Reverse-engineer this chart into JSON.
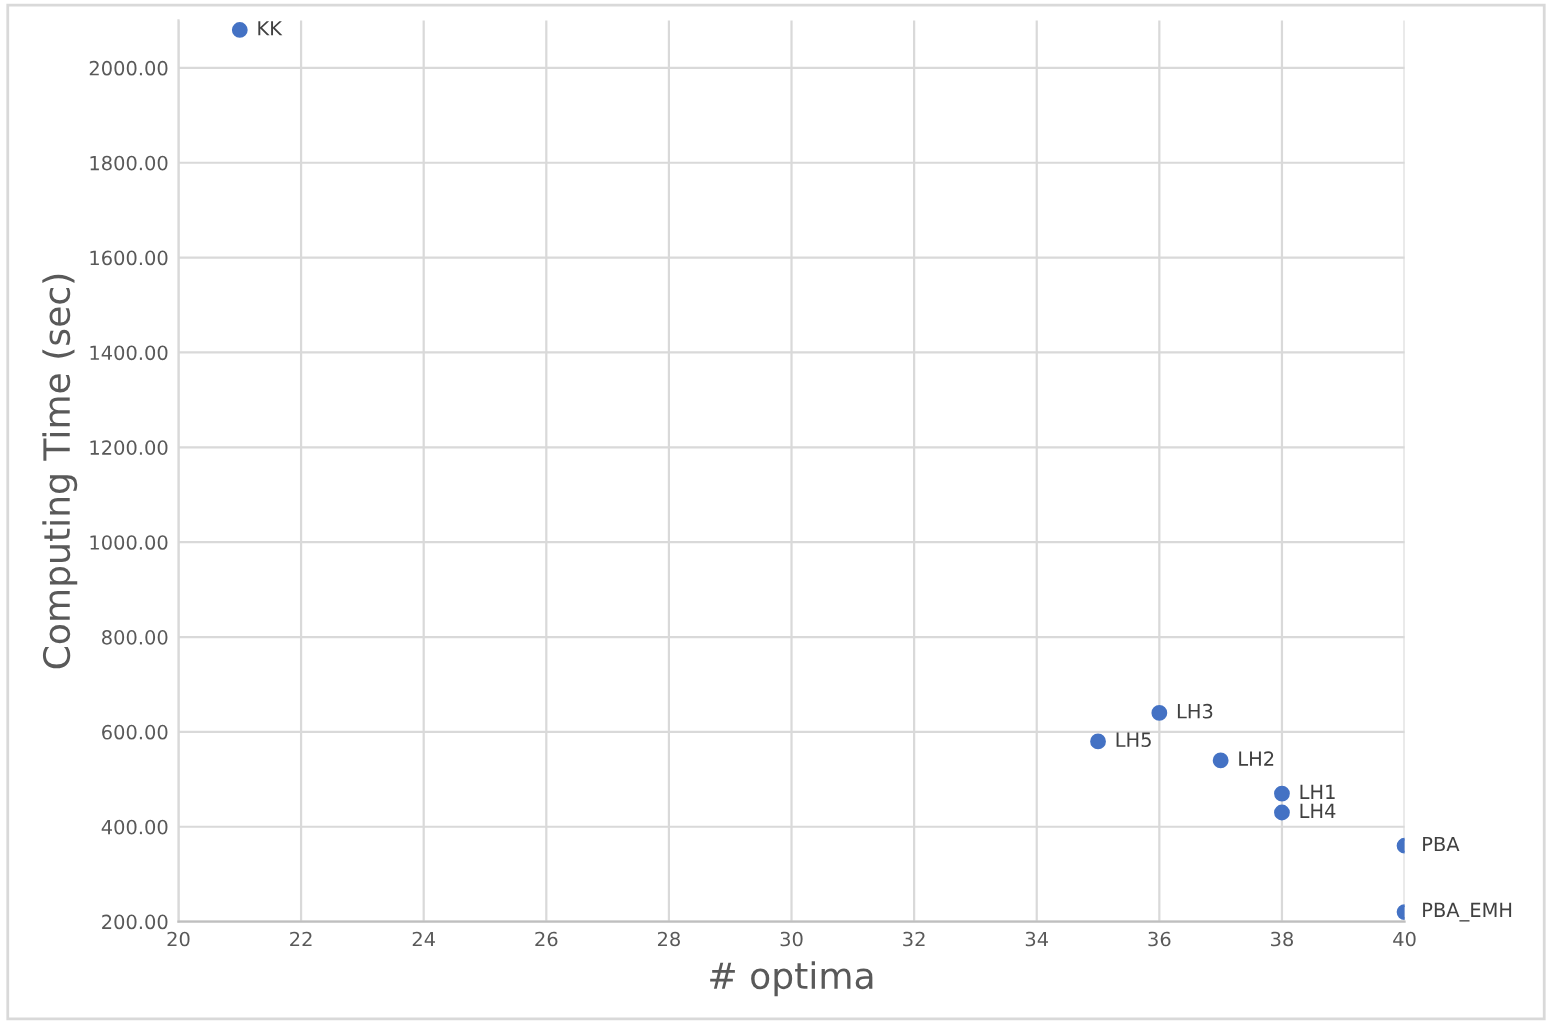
{
  "chart_data": {
    "type": "scatter",
    "xlabel": "# optima",
    "ylabel": "Computing Time (sec)",
    "x": [
      21,
      35,
      36,
      37,
      38,
      38,
      40,
      40
    ],
    "series": [
      {
        "color": "#4472c4",
        "values": [
          2080,
          580,
          640,
          540,
          470,
          430,
          360,
          220
        ]
      }
    ],
    "xlim": [
      20,
      40
    ],
    "ylim": [
      200,
      2100
    ],
    "xticks": [
      20,
      22,
      24,
      26,
      28,
      30,
      32,
      34,
      36,
      38,
      40
    ],
    "yticks": [
      {
        "value": 200,
        "label": "200.00"
      },
      {
        "value": 400,
        "label": "400.00"
      },
      {
        "value": 600,
        "label": "600.00"
      },
      {
        "value": 800,
        "label": "800.00"
      },
      {
        "value": 1000,
        "label": "1000.00"
      },
      {
        "value": 1200,
        "label": "1200.00"
      },
      {
        "value": 1400,
        "label": "1400.00"
      },
      {
        "value": 1600,
        "label": "1600.00"
      },
      {
        "value": 1800,
        "label": "1800.00"
      },
      {
        "value": 2000,
        "label": "2000.00"
      }
    ],
    "grid": true,
    "marker": "circle",
    "legend": false,
    "annotations": [
      {
        "text": "KK",
        "x": 21,
        "y": 2080
      },
      {
        "text": "LH5",
        "x": 35,
        "y": 580
      },
      {
        "text": "LH3",
        "x": 36,
        "y": 640
      },
      {
        "text": "LH2",
        "x": 37,
        "y": 540
      },
      {
        "text": "LH1",
        "x": 38,
        "y": 470
      },
      {
        "text": "LH4",
        "x": 38,
        "y": 430
      },
      {
        "text": "PBA",
        "x": 40,
        "y": 360
      },
      {
        "text": "PBA_EMH",
        "x": 40,
        "y": 220
      }
    ]
  }
}
